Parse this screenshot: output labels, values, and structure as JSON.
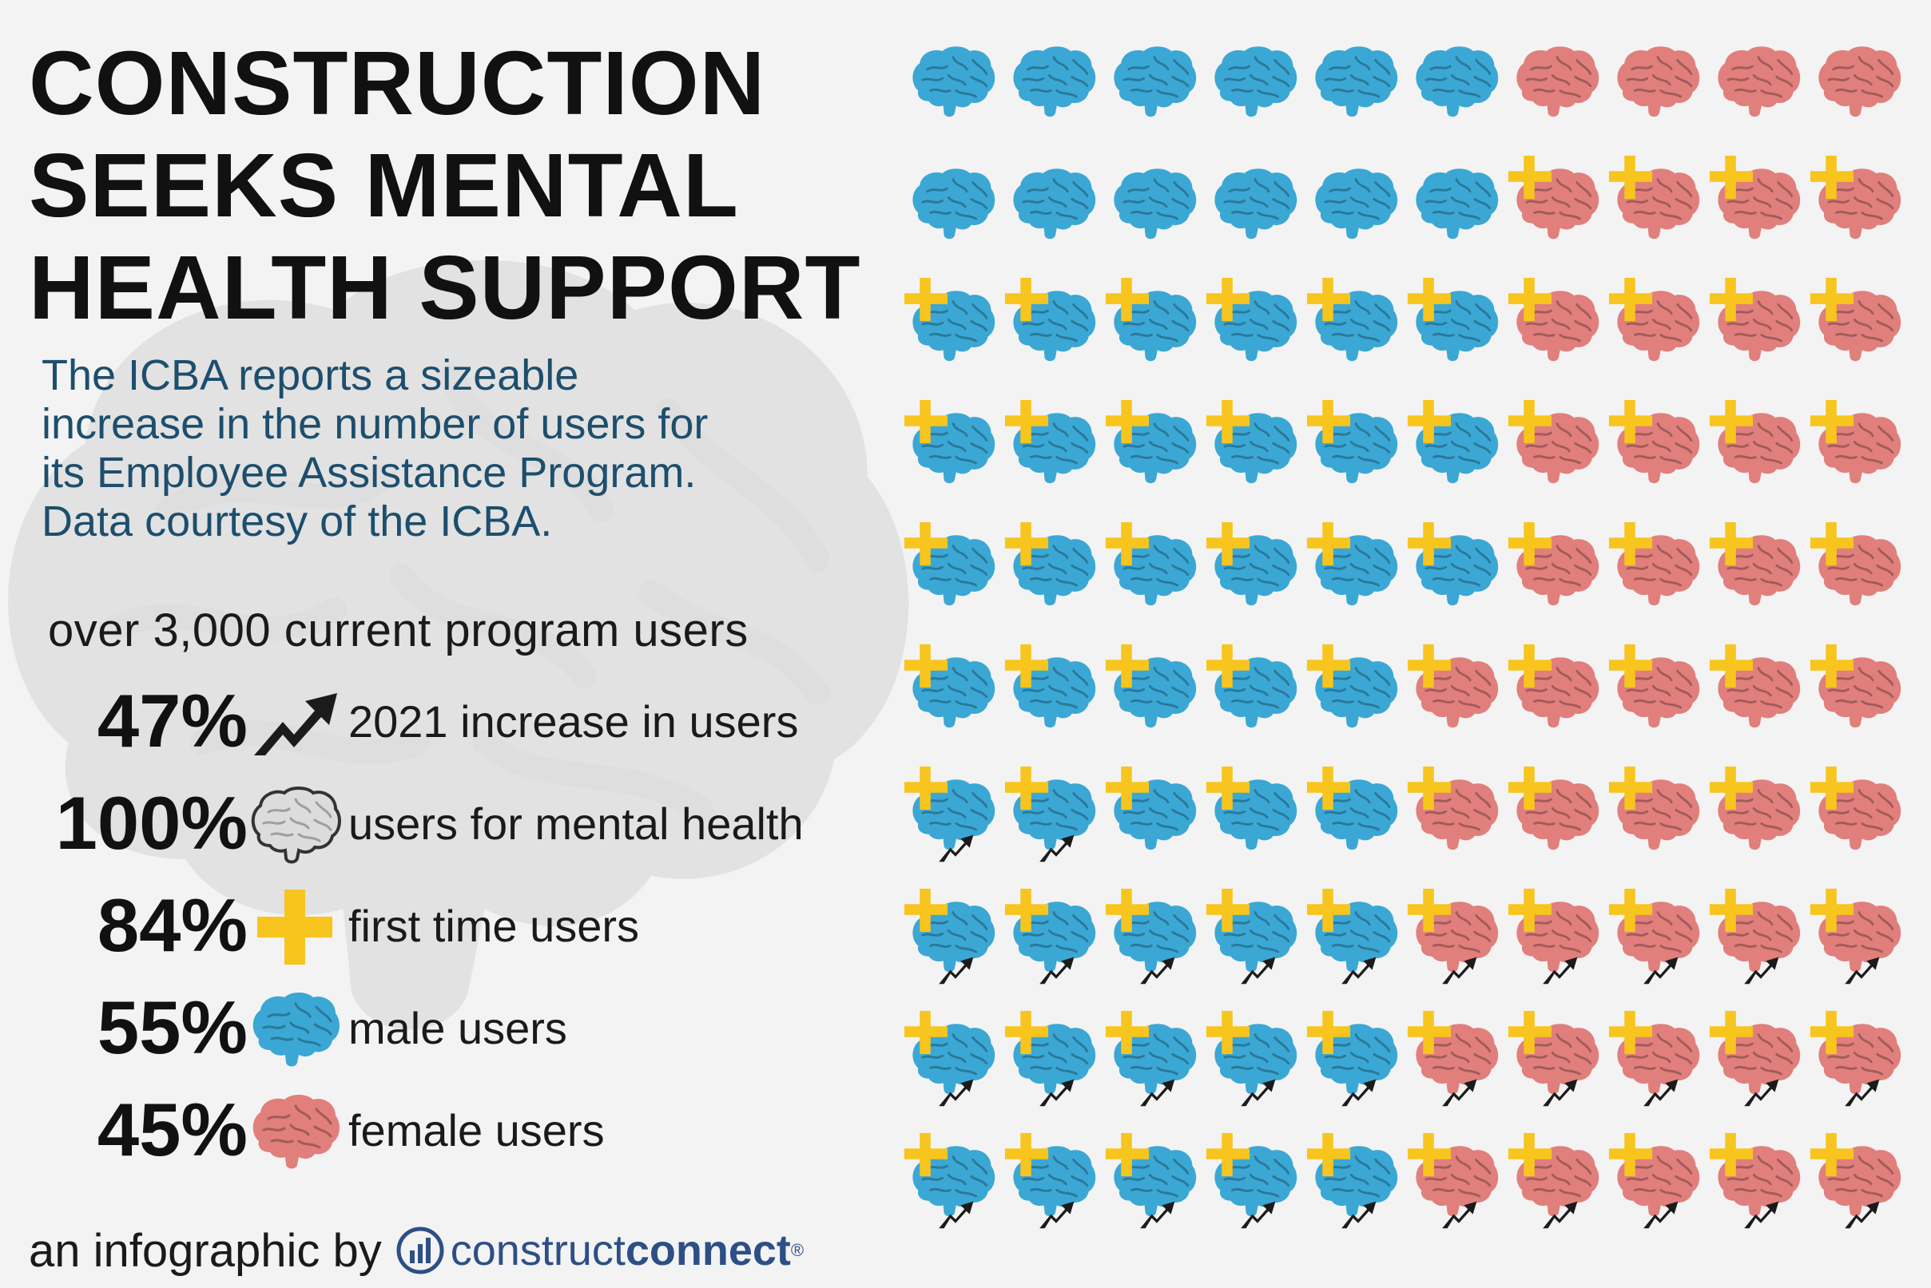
{
  "title_lines": [
    "CONSTRUCTION",
    "SEEKS MENTAL",
    "HEALTH SUPPORT"
  ],
  "description_lines": [
    "The ICBA reports a sizeable",
    "increase in the number of users for",
    "its Employee Assistance Program.",
    "Data courtesy of the ICBA."
  ],
  "users_line": "over 3,000 current program users",
  "stats": [
    {
      "pct": "47%",
      "icon": "trend-arrow-icon",
      "label": "2021 increase in users"
    },
    {
      "pct": "100%",
      "icon": "brain-icon",
      "label": "users for mental health"
    },
    {
      "pct": "84%",
      "icon": "plus-icon",
      "label": "first time users"
    },
    {
      "pct": "55%",
      "icon": "brain-icon",
      "label": "male users"
    },
    {
      "pct": "45%",
      "icon": "brain-icon",
      "label": "female users"
    }
  ],
  "footer": {
    "prefix": "an infographic by",
    "brand_light": "construct",
    "brand_bold": "connect",
    "brand_mark": "®"
  },
  "colors": {
    "male": "#3ba7d4",
    "female": "#e07f7c",
    "plus": "#f7c51e",
    "arrow": "#1b1b1b",
    "description": "#1d4e6d",
    "brand": "#2d4f86"
  },
  "chart_data": {
    "type": "pictograph",
    "grid": {
      "rows": 10,
      "cols": 10
    },
    "unit": "each brain = 1% of users",
    "series": [
      {
        "name": "male users",
        "value": 55
      },
      {
        "name": "female users",
        "value": 45
      },
      {
        "name": "first time users",
        "value": 84
      },
      {
        "name": "2021 increase in users",
        "value": 47
      }
    ],
    "male_per_row": [
      6,
      6,
      6,
      6,
      6,
      5,
      5,
      5,
      5,
      5
    ],
    "plus_start_col_per_row": [
      10,
      6,
      0,
      0,
      0,
      0,
      0,
      0,
      0,
      0
    ],
    "arrow_start_col_per_row": [
      10,
      10,
      10,
      10,
      10,
      10,
      0,
      0,
      0,
      0
    ],
    "arrow_exclude": [
      [
        6,
        2
      ],
      [
        6,
        3
      ],
      [
        6,
        4
      ],
      [
        6,
        5
      ],
      [
        6,
        6
      ],
      [
        6,
        7
      ],
      [
        6,
        8
      ],
      [
        6,
        9
      ]
    ]
  }
}
